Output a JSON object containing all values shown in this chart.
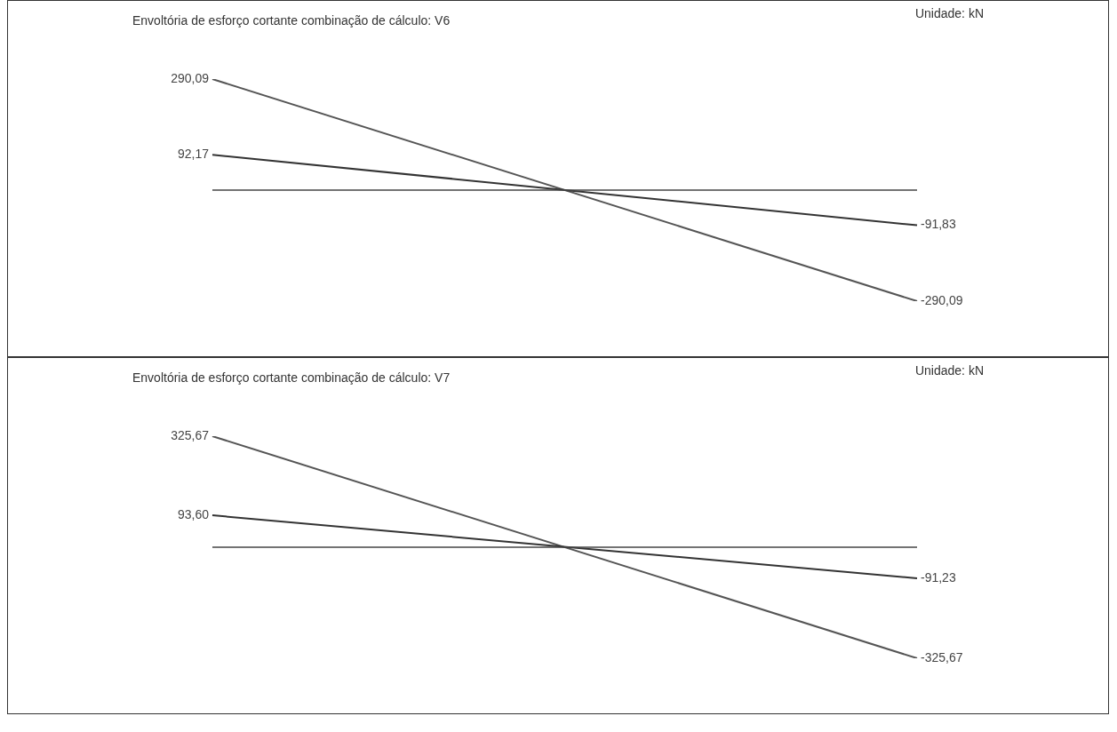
{
  "chart_data": [
    {
      "type": "line",
      "title": "Envoltória de esforço cortante combinação de cálculo: V6",
      "annotations": [
        "Unidade: kN"
      ],
      "categories": [
        null,
        null
      ],
      "tick_labels": false,
      "legend": false,
      "ref_lines": [
        {
          "axis": "y",
          "value": 0,
          "color": "#444444"
        }
      ],
      "series": [
        {
          "color": "#555555",
          "values": [
            290.09,
            -290.09
          ],
          "value_labels": [
            "290,09",
            "-290,09"
          ]
        },
        {
          "color": "#333333",
          "values": [
            92.17,
            -91.83
          ],
          "value_labels": [
            "92,17",
            "-91,83"
          ]
        }
      ]
    },
    {
      "type": "line",
      "title": "Envoltória de esforço cortante combinação de cálculo: V7",
      "annotations": [
        "Unidade: kN"
      ],
      "categories": [
        null,
        null
      ],
      "tick_labels": false,
      "legend": false,
      "ref_lines": [
        {
          "axis": "y",
          "value": 0,
          "color": "#444444"
        }
      ],
      "series": [
        {
          "color": "#555555",
          "values": [
            325.67,
            -325.67
          ],
          "value_labels": [
            "325,67",
            "-325,67"
          ]
        },
        {
          "color": "#333333",
          "values": [
            93.6,
            -91.23
          ],
          "value_labels": [
            "93,60",
            "-91,23"
          ]
        }
      ]
    }
  ]
}
